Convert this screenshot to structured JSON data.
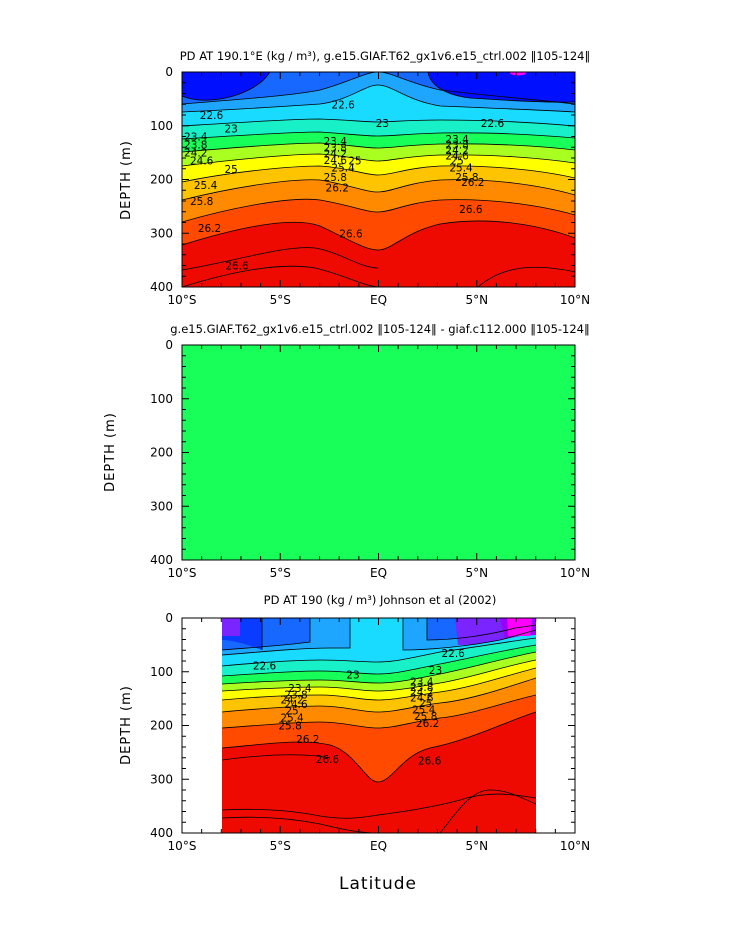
{
  "colors": {
    "deep_violet": "#9b00ff",
    "violet": "#7a24ff",
    "blue_dark": "#0010ff",
    "blue": "#0a3cff",
    "blue_mid": "#1668ff",
    "sky": "#1ea6ff",
    "cyan": "#18dbff",
    "teal": "#18f0c8",
    "green": "#19ff5a",
    "yellow_green": "#a8ff20",
    "yellow": "#ffff00",
    "amber": "#ffc400",
    "orange": "#ff8a00",
    "orange_red": "#ff4a00",
    "red": "#ee0a00",
    "dark_red": "#cc0000",
    "magenta": "#ff00ff"
  },
  "chart_data": [
    {
      "type": "contour",
      "title": "PD AT 190.1°E (kg / m³), g.e15.GIAF.T62_gx1v6.e15_ctrl.002 ‖105-124‖",
      "xlabel": "",
      "ylabel": "DEPTH (m)",
      "xlim": [
        -10,
        10
      ],
      "ylim": [
        0,
        400
      ],
      "x_ticks": [
        -10,
        -5,
        0,
        5,
        10
      ],
      "x_tick_labels": [
        "10°S",
        "5°S",
        "EQ",
        "5°N",
        "10°N"
      ],
      "y_ticks": [
        0,
        100,
        200,
        300,
        400
      ],
      "y_tick_labels": [
        "0",
        "100",
        "200",
        "300",
        "400"
      ],
      "contour_labels": [
        {
          "text": "22.6",
          "lat": -8.5,
          "depth": 80
        },
        {
          "text": "22.6",
          "lat": -1.8,
          "depth": 60
        },
        {
          "text": "22.6",
          "lat": 5.8,
          "depth": 95
        },
        {
          "text": "23",
          "lat": -7.5,
          "depth": 105
        },
        {
          "text": "23",
          "lat": 0.2,
          "depth": 95
        },
        {
          "text": "23.4",
          "lat": -9.3,
          "depth": 120
        },
        {
          "text": "23.8",
          "lat": -9.3,
          "depth": 135
        },
        {
          "text": "24.2",
          "lat": -9.3,
          "depth": 150
        },
        {
          "text": "24.6",
          "lat": -9.0,
          "depth": 165
        },
        {
          "text": "25",
          "lat": -7.5,
          "depth": 180
        },
        {
          "text": "25.4",
          "lat": -8.8,
          "depth": 210
        },
        {
          "text": "25.8",
          "lat": -9.0,
          "depth": 240
        },
        {
          "text": "26.2",
          "lat": -8.6,
          "depth": 290
        },
        {
          "text": "26.6",
          "lat": -7.2,
          "depth": 360
        },
        {
          "text": "23.4",
          "lat": -2.2,
          "depth": 128
        },
        {
          "text": "23.8",
          "lat": -2.2,
          "depth": 140
        },
        {
          "text": "24.2",
          "lat": -2.2,
          "depth": 152
        },
        {
          "text": "24.6",
          "lat": -2.2,
          "depth": 164
        },
        {
          "text": "25",
          "lat": -1.2,
          "depth": 165
        },
        {
          "text": "25.4",
          "lat": -1.8,
          "depth": 178
        },
        {
          "text": "25.8",
          "lat": -2.2,
          "depth": 195
        },
        {
          "text": "26.2",
          "lat": -2.1,
          "depth": 215
        },
        {
          "text": "26.6",
          "lat": -1.4,
          "depth": 300
        },
        {
          "text": "23.4",
          "lat": 4.0,
          "depth": 125
        },
        {
          "text": "23.8",
          "lat": 4.0,
          "depth": 135
        },
        {
          "text": "24.2",
          "lat": 4.0,
          "depth": 145
        },
        {
          "text": "24.6",
          "lat": 4.0,
          "depth": 155
        },
        {
          "text": "25",
          "lat": 4.0,
          "depth": 165
        },
        {
          "text": "25.4",
          "lat": 4.2,
          "depth": 178
        },
        {
          "text": "25.8",
          "lat": 4.5,
          "depth": 195
        },
        {
          "text": "26.2",
          "lat": 4.8,
          "depth": 205
        },
        {
          "text": "26.6",
          "lat": 4.7,
          "depth": 255
        }
      ]
    },
    {
      "type": "contour",
      "title": "g.e15.GIAF.T62_gx1v6.e15_ctrl.002 ‖105-124‖ - giaf.c112.000 ‖105-124‖",
      "xlabel": "",
      "ylabel": "DEPTH (m)",
      "xlim": [
        -10,
        10
      ],
      "ylim": [
        0,
        400
      ],
      "x_ticks": [
        -10,
        -5,
        0,
        5,
        10
      ],
      "x_tick_labels": [
        "10°S",
        "5°S",
        "EQ",
        "5°N",
        "10°N"
      ],
      "y_ticks": [
        0,
        100,
        200,
        300,
        400
      ],
      "y_tick_labels": [
        "0",
        "100",
        "200",
        "300",
        "400"
      ],
      "fill": "uniform",
      "contour_labels": []
    },
    {
      "type": "contour",
      "title": "PD AT 190 (kg / m³) Johnson et al (2002)",
      "xlabel": "Latitude",
      "ylabel": "DEPTH (m)",
      "xlim": [
        -10,
        10
      ],
      "ylim": [
        0,
        400
      ],
      "data_lat_range": [
        -8,
        8
      ],
      "x_ticks": [
        -10,
        -5,
        0,
        5,
        10
      ],
      "x_tick_labels": [
        "10°S",
        "5°S",
        "EQ",
        "5°N",
        "10°N"
      ],
      "y_ticks": [
        0,
        100,
        200,
        300,
        400
      ],
      "y_tick_labels": [
        "0",
        "100",
        "200",
        "300",
        "400"
      ],
      "contour_labels": [
        {
          "text": "22.6",
          "lat": -5.8,
          "depth": 88
        },
        {
          "text": "22.6",
          "lat": 3.8,
          "depth": 65
        },
        {
          "text": "23",
          "lat": -1.3,
          "depth": 105
        },
        {
          "text": "23",
          "lat": 2.9,
          "depth": 97
        },
        {
          "text": "23.4",
          "lat": -4.0,
          "depth": 130
        },
        {
          "text": "23.8",
          "lat": -4.2,
          "depth": 142
        },
        {
          "text": "24.2",
          "lat": -4.4,
          "depth": 152
        },
        {
          "text": "24.6",
          "lat": -4.2,
          "depth": 160
        },
        {
          "text": "25",
          "lat": -4.4,
          "depth": 172
        },
        {
          "text": "25.4",
          "lat": -4.4,
          "depth": 185
        },
        {
          "text": "25.8",
          "lat": -4.5,
          "depth": 200
        },
        {
          "text": "26.2",
          "lat": -3.6,
          "depth": 225
        },
        {
          "text": "26.6",
          "lat": -2.6,
          "depth": 262
        },
        {
          "text": "23.4",
          "lat": 2.2,
          "depth": 118
        },
        {
          "text": "23.8",
          "lat": 2.2,
          "depth": 128
        },
        {
          "text": "24.2",
          "lat": 2.2,
          "depth": 138
        },
        {
          "text": "24.6",
          "lat": 2.2,
          "depth": 148
        },
        {
          "text": "25",
          "lat": 2.4,
          "depth": 158
        },
        {
          "text": "25.4",
          "lat": 2.3,
          "depth": 170
        },
        {
          "text": "25.8",
          "lat": 2.4,
          "depth": 182
        },
        {
          "text": "26.2",
          "lat": 2.5,
          "depth": 195
        },
        {
          "text": "26.6",
          "lat": 2.6,
          "depth": 265
        }
      ]
    }
  ]
}
